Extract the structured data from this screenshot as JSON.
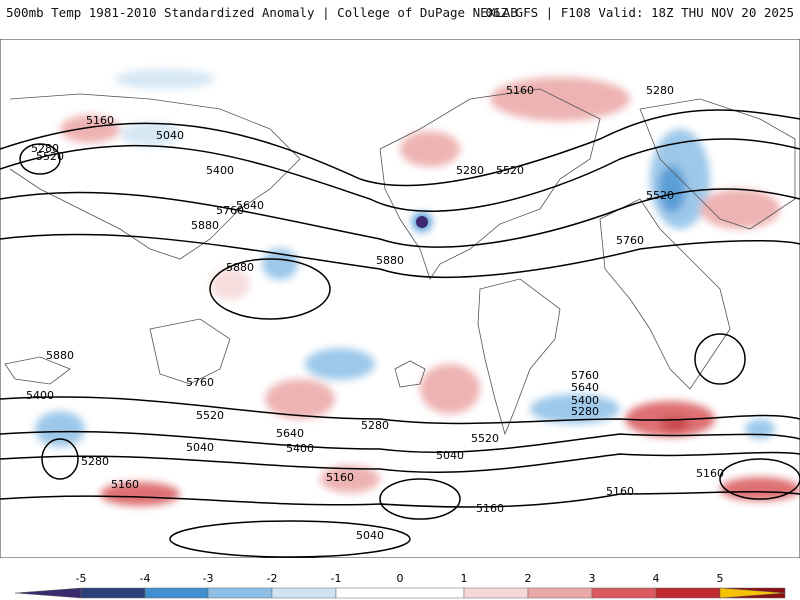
{
  "header": {
    "title": "500mb Temp 1981-2010 Standardized Anomaly | College of DuPage NEXLAB",
    "run_info": "06Z GFS | F108 Valid: 18Z THU NOV 20 2025"
  },
  "contours": {
    "labels": [
      "5040",
      "5160",
      "5280",
      "5400",
      "5520",
      "5640",
      "5760",
      "5880"
    ]
  },
  "colorbar": {
    "ticks": [
      "-5",
      "-4",
      "-3",
      "-2",
      "-1",
      "0",
      "1",
      "2",
      "3",
      "4",
      "5"
    ],
    "colors": [
      "#3b2a6e",
      "#2b3f7a",
      "#3f8fd1",
      "#8dbfe6",
      "#cfe3f3",
      "#ffffff",
      "#f6d8d8",
      "#eba6a6",
      "#d9595c",
      "#c02a2e",
      "#8b0f12",
      "#f5c100"
    ]
  }
}
